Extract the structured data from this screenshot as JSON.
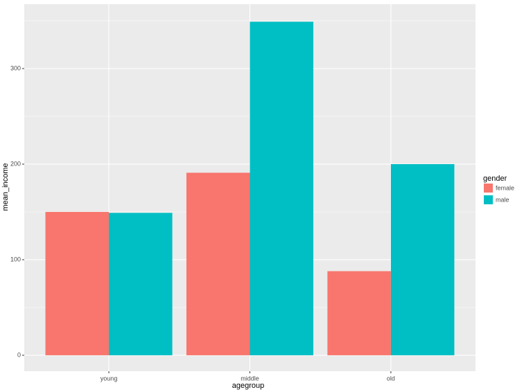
{
  "chart_data": {
    "type": "bar",
    "x_label": "agegroup",
    "y_label": "mean_income",
    "categories": [
      "young",
      "middle",
      "old"
    ],
    "series": [
      {
        "name": "female",
        "color": "#f8766d",
        "values": [
          150,
          191,
          88
        ]
      },
      {
        "name": "male",
        "color": "#00bfc4",
        "values": [
          149,
          349,
          200
        ]
      }
    ],
    "legend_title": "gender",
    "legend_position": "right",
    "ylim": [
      -16.7,
      367.4
    ],
    "yticks": [
      0,
      100,
      200,
      300
    ],
    "minor_yticks": [
      50,
      150,
      250,
      350
    ],
    "grid": true
  }
}
